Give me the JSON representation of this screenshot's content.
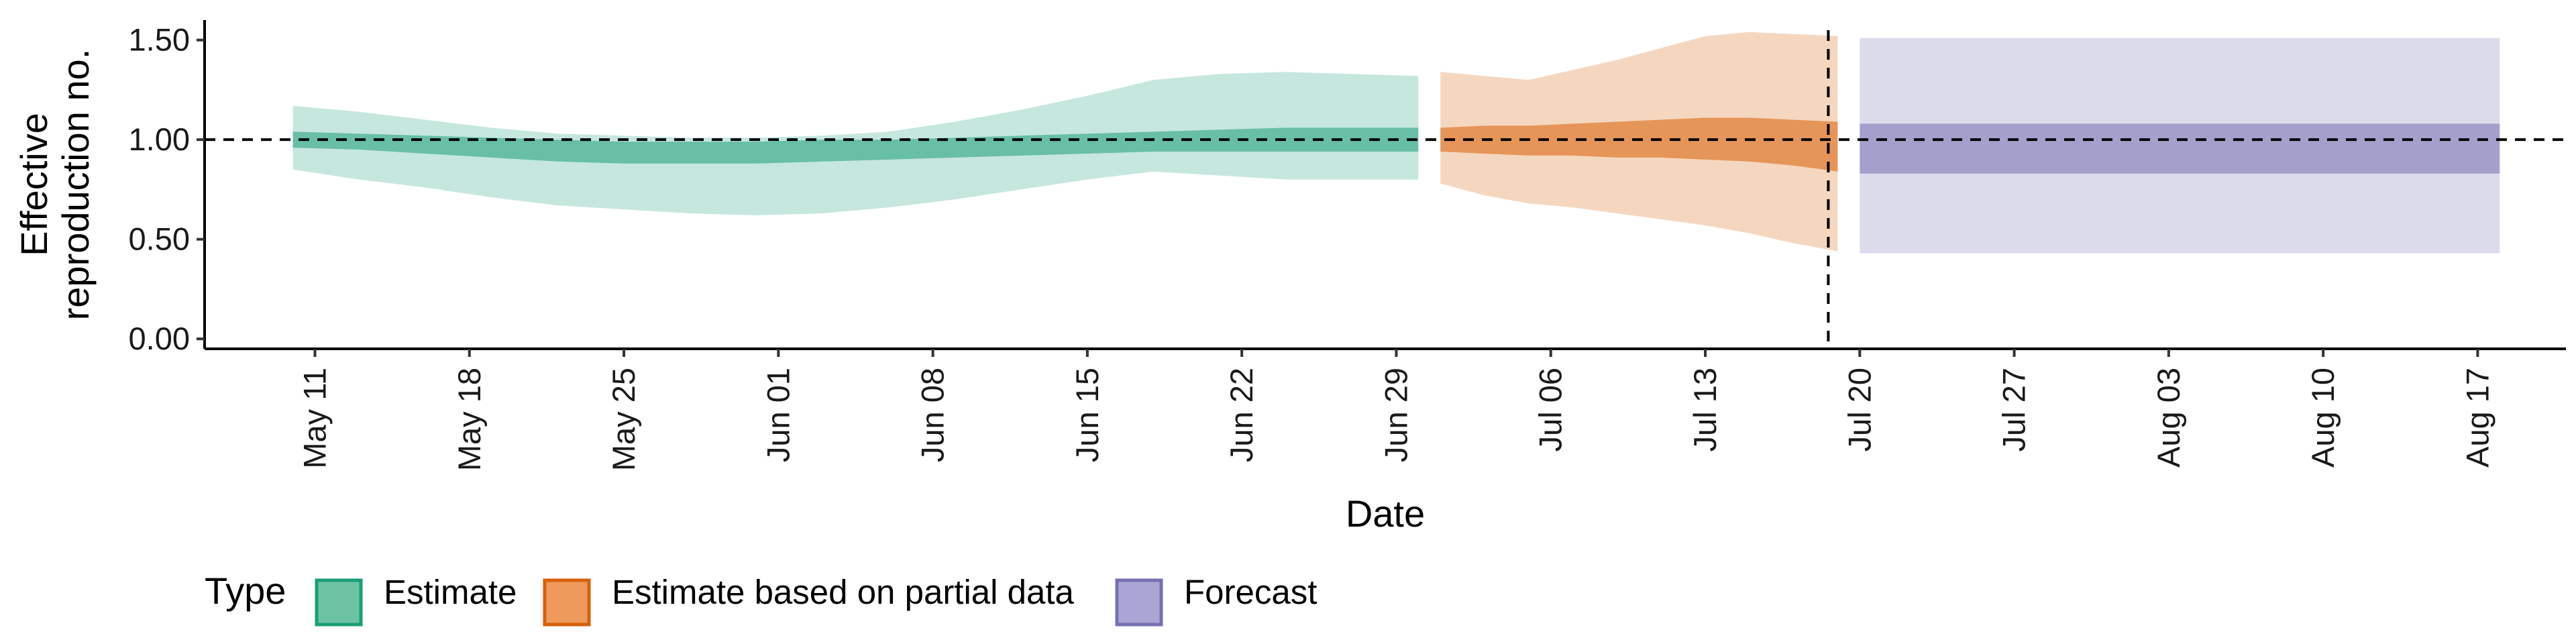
{
  "chart_data": {
    "type": "area",
    "title": "",
    "xlabel": "Date",
    "ylabel": "Effective reproduction no.",
    "ylabel_lines": [
      "Effective",
      "reproduction no."
    ],
    "xlim": [
      "2021-05-06",
      "2021-08-21"
    ],
    "ylim": [
      -0.05,
      1.6
    ],
    "yticks": [
      0.0,
      0.5,
      1.0,
      1.5
    ],
    "ytick_labels": [
      "0.00",
      "0.50",
      "1.00",
      "1.50"
    ],
    "xticks": [
      "2021-05-11",
      "2021-05-18",
      "2021-05-25",
      "2021-06-01",
      "2021-06-08",
      "2021-06-15",
      "2021-06-22",
      "2021-06-29",
      "2021-07-06",
      "2021-07-13",
      "2021-07-20",
      "2021-07-27",
      "2021-08-03",
      "2021-08-10",
      "2021-08-17"
    ],
    "xtick_labels": [
      "May 11",
      "May 18",
      "May 25",
      "Jun 01",
      "Jun 08",
      "Jun 15",
      "Jun 22",
      "Jun 29",
      "Jul 06",
      "Jul 13",
      "Jul 20",
      "Jul 27",
      "Aug 03",
      "Aug 10",
      "Aug 17"
    ],
    "reference_line_y": 1.0,
    "forecast_start": "2021-07-19",
    "grid": false,
    "legend": {
      "title": "Type",
      "position": "bottom",
      "entries": [
        {
          "name": "Estimate",
          "fill": "#6cc3a4",
          "stroke": "#1b9e77"
        },
        {
          "name": "Estimate based on partial data",
          "fill": "#ee9a5c",
          "stroke": "#d95f02"
        },
        {
          "name": "Forecast",
          "fill": "#aaa6d4",
          "stroke": "#7570b3"
        }
      ]
    },
    "series": [
      {
        "name": "Estimate",
        "color": "#1b9e77",
        "x": [
          "2021-05-10",
          "2021-05-13",
          "2021-05-16",
          "2021-05-19",
          "2021-05-22",
          "2021-05-25",
          "2021-05-28",
          "2021-05-31",
          "2021-06-03",
          "2021-06-06",
          "2021-06-09",
          "2021-06-12",
          "2021-06-15",
          "2021-06-18",
          "2021-06-21",
          "2021-06-24",
          "2021-06-27",
          "2021-06-30"
        ],
        "lower90": [
          0.85,
          0.8,
          0.76,
          0.71,
          0.67,
          0.65,
          0.63,
          0.62,
          0.63,
          0.66,
          0.7,
          0.75,
          0.8,
          0.84,
          0.82,
          0.8,
          0.8,
          0.8
        ],
        "upper90": [
          1.17,
          1.14,
          1.1,
          1.06,
          1.03,
          1.02,
          1.01,
          1.01,
          1.02,
          1.04,
          1.09,
          1.15,
          1.22,
          1.3,
          1.33,
          1.34,
          1.33,
          1.32
        ],
        "lower50": [
          0.96,
          0.95,
          0.93,
          0.91,
          0.89,
          0.88,
          0.88,
          0.88,
          0.89,
          0.9,
          0.91,
          0.92,
          0.93,
          0.94,
          0.94,
          0.94,
          0.94,
          0.94
        ],
        "upper50": [
          1.04,
          1.03,
          1.02,
          1.01,
          1.0,
          0.99,
          0.99,
          0.99,
          1.0,
          1.0,
          1.01,
          1.02,
          1.03,
          1.04,
          1.05,
          1.06,
          1.06,
          1.06
        ]
      },
      {
        "name": "Estimate based on partial data",
        "color": "#d95f02",
        "x": [
          "2021-07-01",
          "2021-07-03",
          "2021-07-05",
          "2021-07-07",
          "2021-07-09",
          "2021-07-11",
          "2021-07-13",
          "2021-07-15",
          "2021-07-17",
          "2021-07-19"
        ],
        "lower90": [
          0.78,
          0.72,
          0.68,
          0.66,
          0.63,
          0.6,
          0.57,
          0.53,
          0.48,
          0.44
        ],
        "upper90": [
          1.34,
          1.32,
          1.3,
          1.35,
          1.4,
          1.46,
          1.52,
          1.54,
          1.53,
          1.52
        ],
        "lower50": [
          0.94,
          0.93,
          0.92,
          0.92,
          0.91,
          0.91,
          0.9,
          0.89,
          0.87,
          0.84
        ],
        "upper50": [
          1.06,
          1.07,
          1.07,
          1.08,
          1.09,
          1.1,
          1.11,
          1.11,
          1.1,
          1.09
        ]
      },
      {
        "name": "Forecast",
        "color": "#7570b3",
        "x": [
          "2021-07-20",
          "2021-08-18"
        ],
        "lower90": [
          0.43,
          0.43
        ],
        "upper90": [
          1.51,
          1.51
        ],
        "lower50": [
          0.83,
          0.83
        ],
        "upper50": [
          1.08,
          1.08
        ]
      }
    ]
  }
}
